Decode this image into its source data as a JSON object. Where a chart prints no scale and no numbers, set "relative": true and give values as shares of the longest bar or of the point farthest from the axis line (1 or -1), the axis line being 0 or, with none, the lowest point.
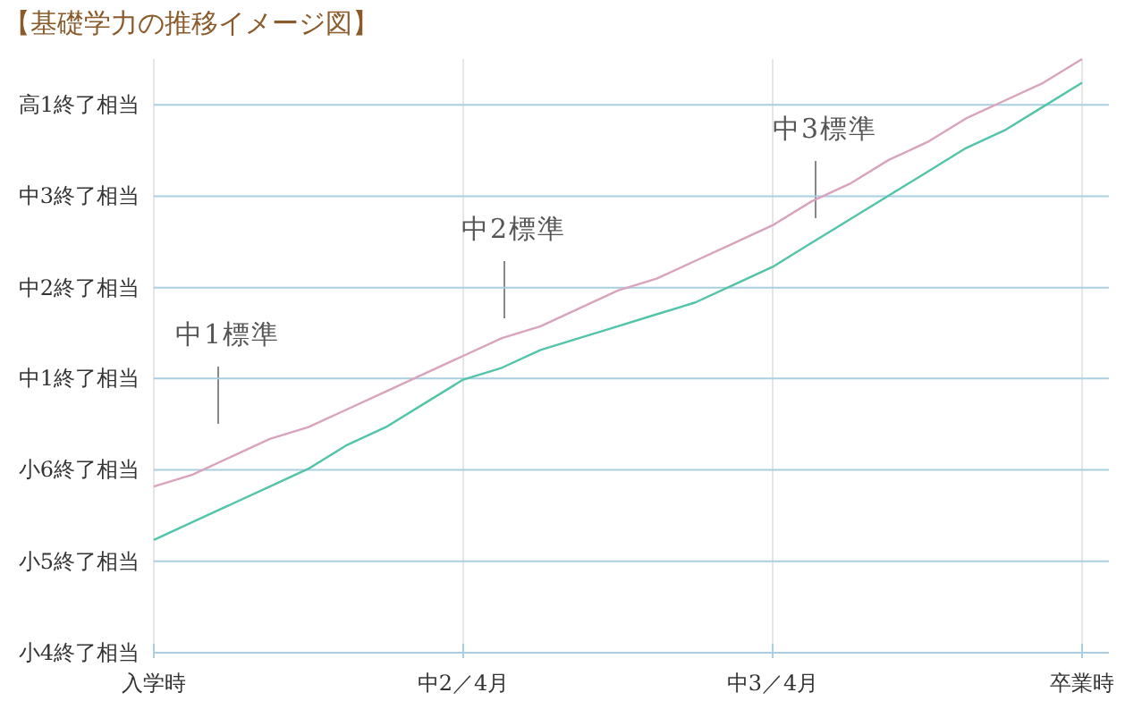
{
  "chart_data": {
    "type": "line",
    "title": "【基礎学力の推移イメージ図】",
    "relative": true,
    "categories": [
      "入学時",
      null,
      null,
      null,
      null,
      null,
      null,
      null,
      "中2／4月",
      null,
      null,
      null,
      null,
      null,
      null,
      null,
      "中3／4月",
      null,
      null,
      null,
      null,
      null,
      null,
      null,
      "卒業時"
    ],
    "grid": true,
    "marker": "none",
    "line_style": "solid",
    "series": [
      {
        "color": "#d9a3bd",
        "values": [
          0.28,
          0.3,
          0.33,
          0.36,
          0.38,
          0.41,
          0.44,
          0.47,
          0.5,
          0.53,
          0.55,
          0.58,
          0.61,
          0.63,
          0.66,
          0.69,
          0.72,
          0.76,
          0.79,
          0.83,
          0.86,
          0.9,
          0.93,
          0.96,
          1
        ]
      },
      {
        "color": "#52c4a8",
        "values": [
          0.19,
          0.22,
          0.25,
          0.28,
          0.31,
          0.35,
          0.38,
          0.42,
          0.46,
          0.48,
          0.51,
          0.53,
          0.55,
          0.57,
          0.59,
          0.62,
          0.65,
          0.69,
          0.73,
          0.77,
          0.81,
          0.85,
          0.88,
          0.92,
          0.96
        ]
      }
    ],
    "ref_lines": [
      {
        "axis": "y",
        "value": 0,
        "label": "小4終了相当",
        "color": "#a9cfe0"
      },
      {
        "axis": "y",
        "value": 0.154,
        "label": "小5終了相当",
        "color": "#a9cfe0"
      },
      {
        "axis": "y",
        "value": 0.308,
        "label": "小6終了相当",
        "color": "#a9cfe0"
      },
      {
        "axis": "y",
        "value": 0.462,
        "label": "中1終了相当",
        "color": "#a9cfe0"
      },
      {
        "axis": "y",
        "value": 0.615,
        "label": "中2終了相当",
        "color": "#a9cfe0"
      },
      {
        "axis": "y",
        "value": 0.769,
        "label": "中3終了相当",
        "color": "#a9cfe0"
      },
      {
        "axis": "y",
        "value": 0.923,
        "label": "高1終了相当",
        "color": "#a9cfe0"
      }
    ],
    "annotations": [
      "中1標準",
      "中2標準",
      "中3標準"
    ]
  }
}
